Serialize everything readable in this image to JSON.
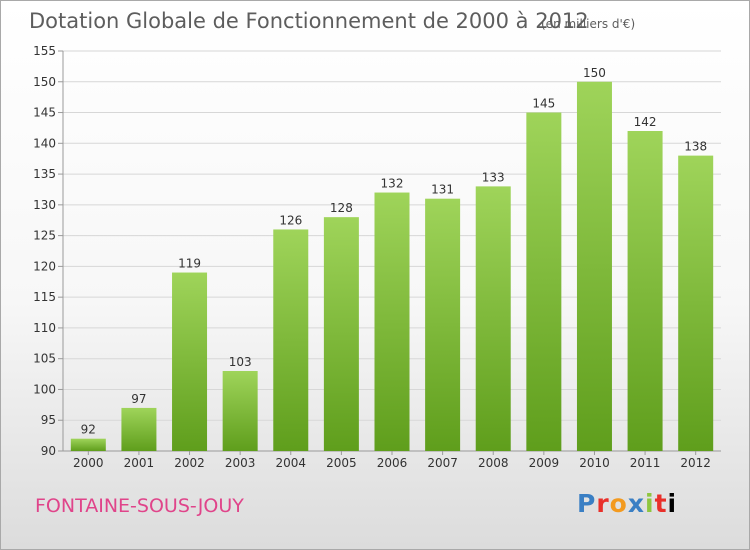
{
  "header": {
    "title": "Dotation Globale de Fonctionnement de 2000 à 2012",
    "subtitle": "(en milliers d'€)"
  },
  "footer": {
    "commune": "FONTAINE-SOUS-JOUY",
    "logo_letters": [
      "P",
      "r",
      "o",
      "x",
      "i",
      "t",
      "i"
    ]
  },
  "colors": {
    "bar_top": "#9fd45a",
    "bar_bottom": "#5f9e1c",
    "grid": "#d7d7d7",
    "axis": "#9a9a9a",
    "text": "#333333",
    "commune": "#e0448a"
  },
  "chart_data": {
    "type": "bar",
    "title": "Dotation Globale de Fonctionnement de 2000 à 2012",
    "subtitle": "(en milliers d'€)",
    "categories": [
      "2000",
      "2001",
      "2002",
      "2003",
      "2004",
      "2005",
      "2006",
      "2007",
      "2008",
      "2009",
      "2010",
      "2011",
      "2012"
    ],
    "values": [
      92,
      97,
      119,
      103,
      126,
      128,
      132,
      131,
      133,
      145,
      150,
      142,
      138
    ],
    "ylim": [
      90,
      155
    ],
    "yticks": [
      90,
      95,
      100,
      105,
      110,
      115,
      120,
      125,
      130,
      135,
      140,
      145,
      150,
      155
    ],
    "grid": true,
    "data_labels": true,
    "legend": "none"
  }
}
